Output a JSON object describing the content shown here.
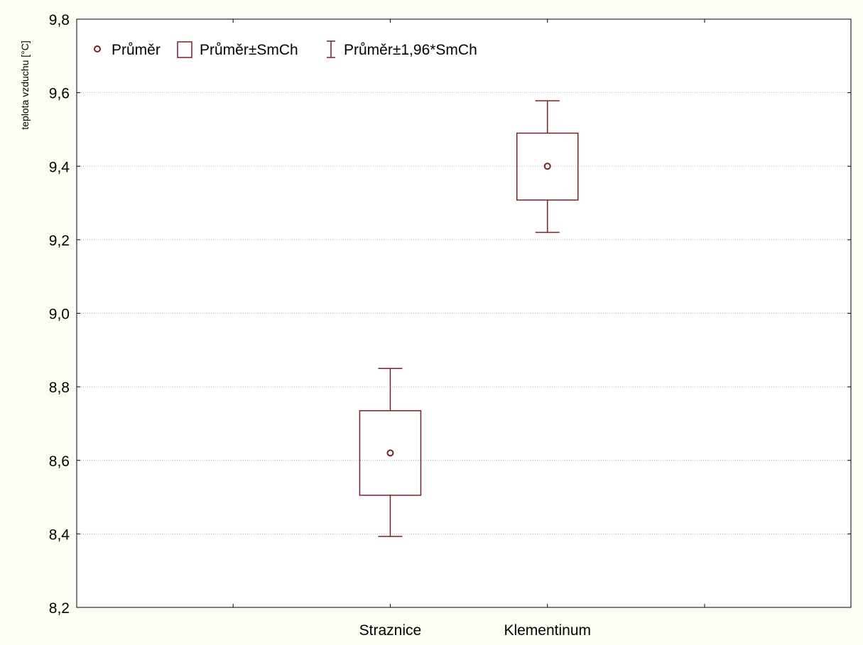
{
  "chart_data": {
    "type": "box",
    "ylabel": "teplota vzduchu [°C]",
    "xlabel": "",
    "categories": [
      "Straznice",
      "Klementinum"
    ],
    "ylim": [
      8.2,
      9.8
    ],
    "y_ticks": [
      "8,2",
      "8,4",
      "8,6",
      "8,8",
      "9,0",
      "9,2",
      "9,4",
      "9,6",
      "9,8"
    ],
    "grid": true,
    "legend": {
      "placement": "top-left",
      "entries": [
        "Průměr",
        "Průměr±SmCh",
        "Průměr±1,96*SmCh"
      ]
    },
    "series": [
      {
        "category": "Straznice",
        "mean": 8.62,
        "box_low": 8.505,
        "box_high": 8.735,
        "whisker_low": 8.393,
        "whisker_high": 8.85
      },
      {
        "category": "Klementinum",
        "mean": 9.4,
        "box_low": 9.308,
        "box_high": 9.49,
        "whisker_low": 9.22,
        "whisker_high": 9.578
      }
    ],
    "colors": {
      "mark": "#7b1f27",
      "grid": "#b5b5b5",
      "background": "#fdfcf3",
      "plot_background": "#ffffff"
    }
  }
}
